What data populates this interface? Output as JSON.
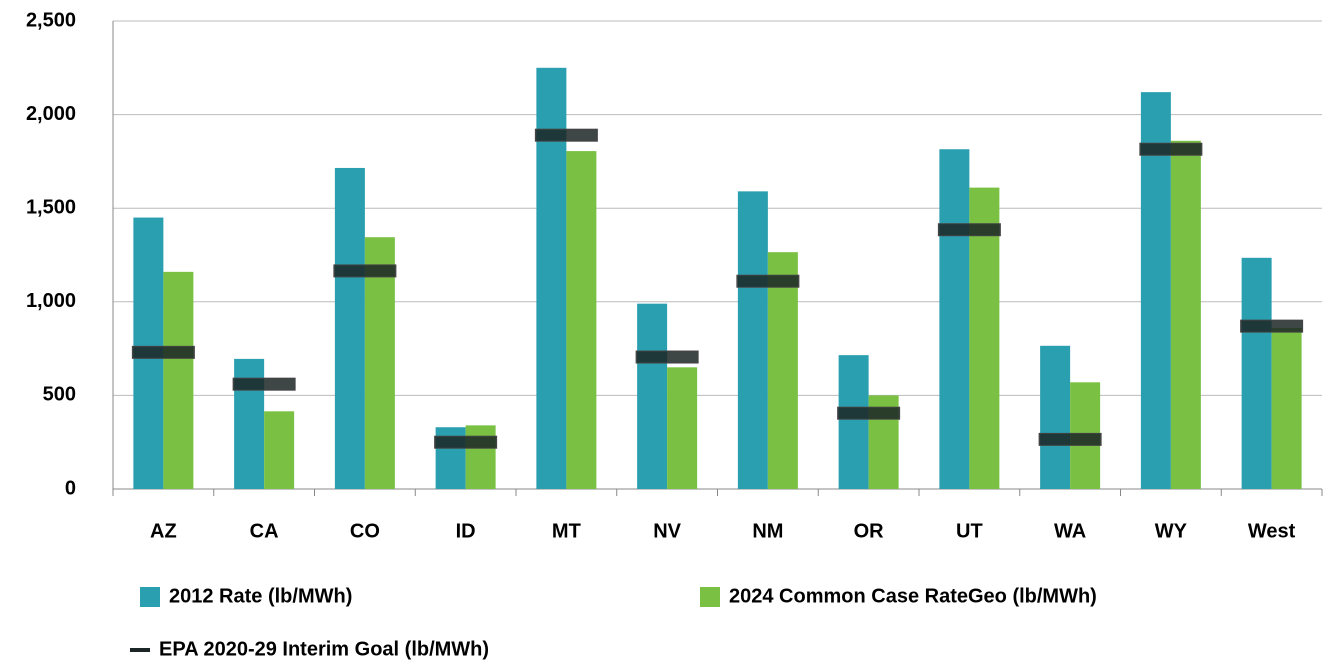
{
  "chart_data": {
    "type": "bar",
    "categories": [
      "AZ",
      "CA",
      "CO",
      "ID",
      "MT",
      "NV",
      "NM",
      "OR",
      "UT",
      "WA",
      "WY",
      "West"
    ],
    "series": [
      {
        "name": "2012 Rate (lb/MWh)",
        "color": "#2a9fb0",
        "style": "bar",
        "values": [
          1450,
          695,
          1715,
          330,
          2250,
          990,
          1590,
          715,
          1815,
          765,
          2120,
          1235
        ]
      },
      {
        "name": "2024 Common Case RateGeo (lb/MWh)",
        "color": "#7ac143",
        "style": "bar",
        "values": [
          1160,
          415,
          1345,
          340,
          1805,
          650,
          1265,
          500,
          1610,
          570,
          1860,
          860
        ]
      },
      {
        "name": "EPA 2020-29 Interim Goal (lb/MWh)",
        "color": "#1c2626",
        "style": "marker",
        "values": [
          730,
          560,
          1165,
          250,
          1890,
          705,
          1110,
          405,
          1385,
          265,
          1815,
          870
        ]
      }
    ],
    "ylim": [
      0,
      2500
    ],
    "yticks": [
      0,
      500,
      {
        "value": 1000,
        "label": "1,000"
      },
      {
        "value": 1500,
        "label": "1,500"
      },
      {
        "value": 2000,
        "label": "2,000"
      },
      {
        "value": 2500,
        "label": "2,500"
      }
    ],
    "grid": true
  }
}
